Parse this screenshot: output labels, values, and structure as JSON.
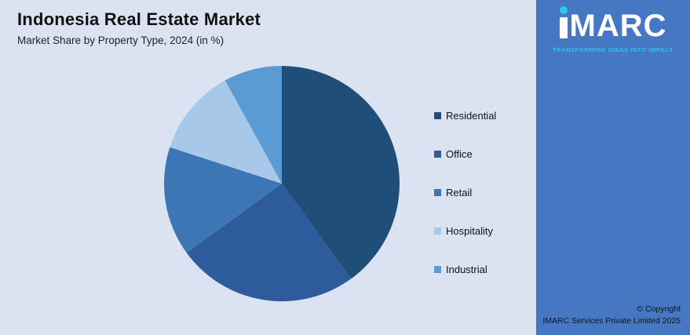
{
  "header": {
    "title": "Indonesia Real Estate Market",
    "subtitle": "Market Share by Property Type, 2024 (in %)"
  },
  "chart_data": {
    "type": "pie",
    "title": "Indonesia Real Estate Market",
    "subtitle": "Market Share by Property Type, 2024 (in %)",
    "categories": [
      "Residential",
      "Office",
      "Retail",
      "Hospitality",
      "Industrial"
    ],
    "values": [
      40,
      25,
      15,
      12,
      8
    ],
    "colors": [
      "#1f4e79",
      "#2e5b9b",
      "#3d76b4",
      "#a7c8e8",
      "#5b9bd5"
    ],
    "legend_position": "right",
    "start_angle_deg": -90,
    "direction": "clockwise"
  },
  "branding": {
    "logo_text": "IMARC",
    "logo_text_rest": "MARC",
    "tagline": "TRANSFORMING IDEAS INTO IMPACT",
    "accent_color": "#2cc6f2",
    "panel_color": "#4577c2"
  },
  "footer": {
    "line1": "© Copyright",
    "line2": "IMARC Services Private Limited 2025"
  }
}
